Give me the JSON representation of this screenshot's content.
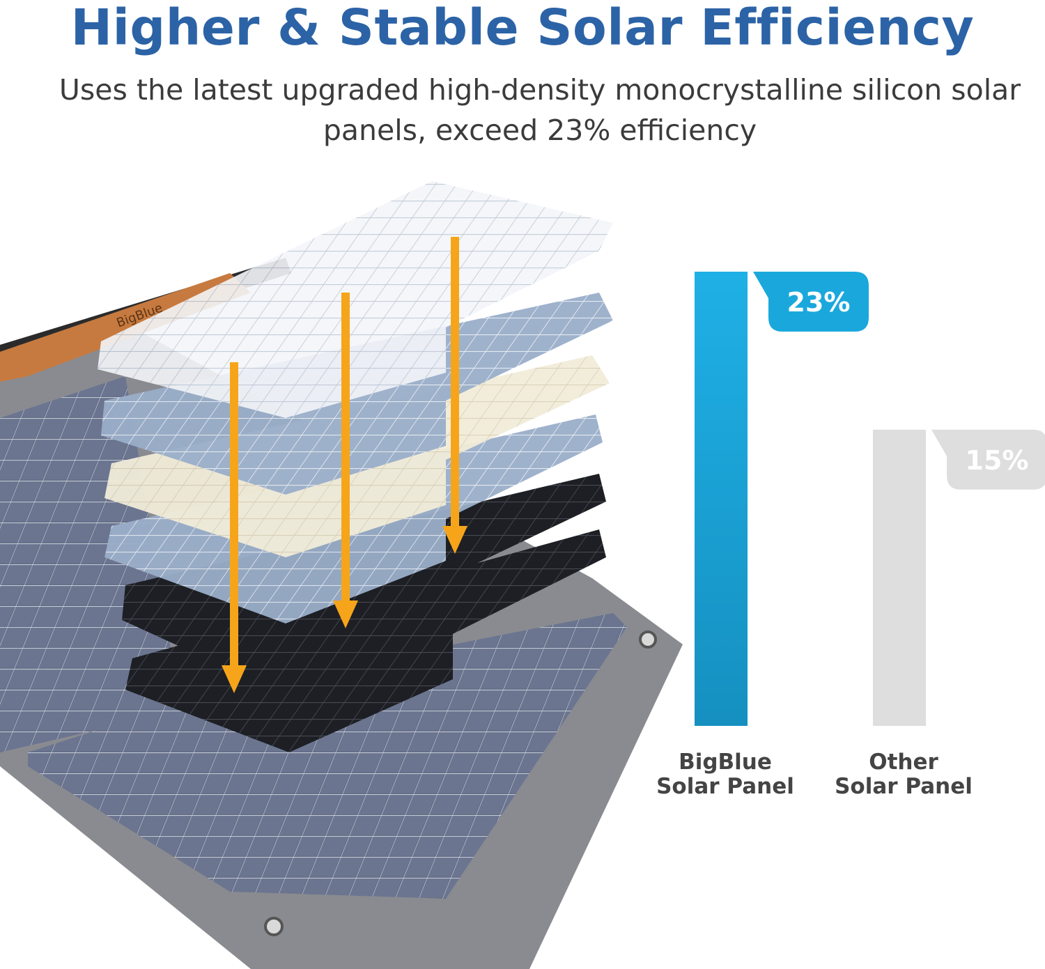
{
  "header": {
    "title": "Higher & Stable Solar Efficiency",
    "subtitle": "Uses the latest upgraded high-density monocrystalline silicon solar panels, exceed 23% efficiency"
  },
  "illustration": {
    "brand_mark": "BigBlue"
  },
  "colors": {
    "title": "#2c63a6",
    "bigblue_bar": "#1aa8dc",
    "other_bar": "#dedede",
    "arrow": "#f6a51a"
  },
  "chart_data": {
    "type": "bar",
    "categories": [
      [
        "BigBlue",
        "Solar Panel"
      ],
      [
        "Other",
        "Solar Panel"
      ]
    ],
    "values": [
      23,
      15
    ],
    "value_labels": [
      "23%",
      "15%"
    ],
    "ylim": [
      0,
      23
    ]
  }
}
